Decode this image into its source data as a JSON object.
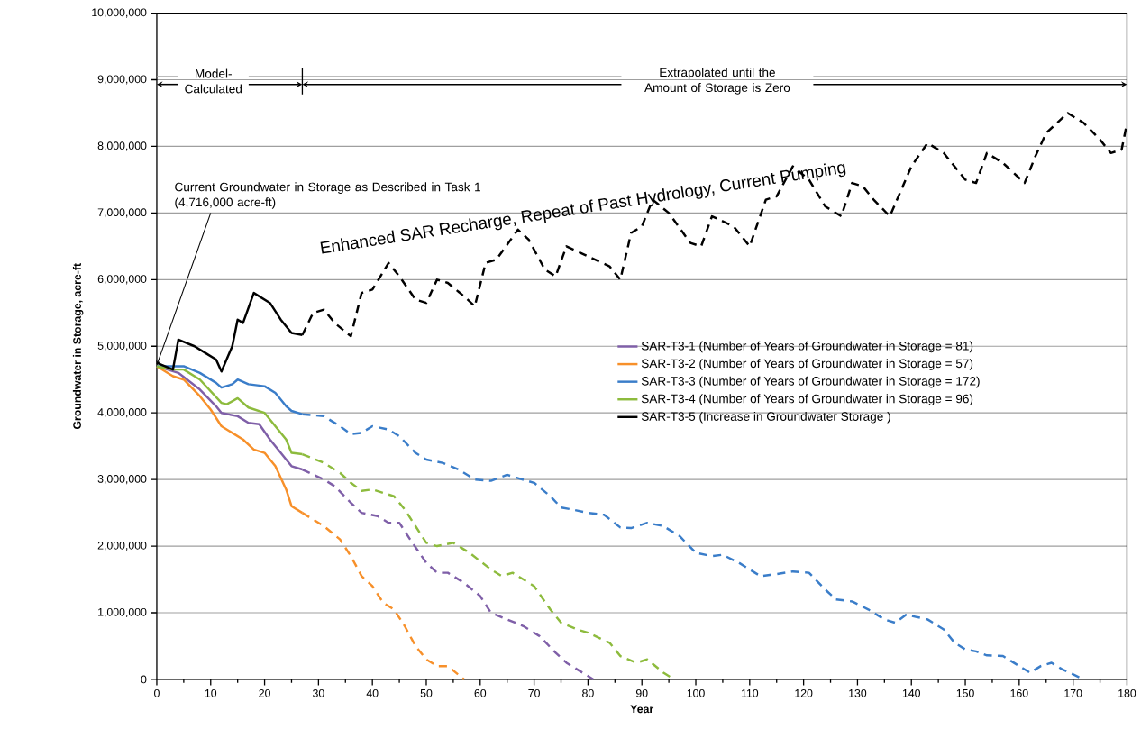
{
  "chart_data": {
    "type": "line",
    "xlabel": "Year",
    "ylabel": "Groundwater in Storage, acre-ft",
    "xlim": [
      0,
      180
    ],
    "xticks": [
      0,
      10,
      20,
      30,
      40,
      50,
      60,
      70,
      80,
      90,
      100,
      110,
      120,
      130,
      140,
      150,
      160,
      170,
      180
    ],
    "ylim": [
      0,
      10000000
    ],
    "yticks": [
      {
        "value": 0,
        "label": "0"
      },
      {
        "value": 1000000,
        "label": "1,000,000"
      },
      {
        "value": 2000000,
        "label": "2,000,000"
      },
      {
        "value": 3000000,
        "label": "3,000,000"
      },
      {
        "value": 4000000,
        "label": "4,000,000"
      },
      {
        "value": 5000000,
        "label": "5,000,000"
      },
      {
        "value": 6000000,
        "label": "6,000,000"
      },
      {
        "value": 7000000,
        "label": "7,000,000"
      },
      {
        "value": 8000000,
        "label": "8,000,000"
      },
      {
        "value": 9000000,
        "label": "9,000,000"
      },
      {
        "value": 10000000,
        "label": "10,000,000"
      }
    ],
    "grid": "y",
    "legend": "right",
    "annotations": [
      "Model-Calculated",
      "Extrapolated until the Amount of Storage is Zero",
      {
        "text": "Current Groundwater in Storage as Described in Task 1 (4,716,000 acre-ft)",
        "x": 0,
        "y": 4716000
      },
      "Enhanced SAR Recharge, Repeat of Past Hydrology, Current Pumping"
    ],
    "series": [
      {
        "name": "SAR-T3-1 (Number of Years of Groundwater in Storage = 81)",
        "color": "#7f5fa8",
        "line_style": "solid",
        "x": [
          0,
          4,
          8,
          11,
          12,
          15,
          17,
          19,
          21,
          23,
          25,
          27
        ],
        "values": [
          4700000,
          4600000,
          4350000,
          4100000,
          4000000,
          3950000,
          3850000,
          3830000,
          3600000,
          3400000,
          3200000,
          3150000
        ]
      },
      {
        "name": "SAR-T3-2 (Number of Years of Groundwater in Storage = 57)",
        "color": "#f7902a",
        "line_style": "solid",
        "x": [
          0,
          3,
          5,
          8,
          10,
          12,
          14,
          16,
          18,
          20,
          22,
          24,
          25,
          27
        ],
        "values": [
          4700000,
          4550000,
          4500000,
          4250000,
          4050000,
          3800000,
          3700000,
          3600000,
          3450000,
          3400000,
          3200000,
          2850000,
          2600000,
          2500000
        ]
      },
      {
        "name": "SAR-T3-3 (Number of Years of Groundwater in Storage = 172)",
        "color": "#3a7dc9",
        "line_style": "solid",
        "x": [
          0,
          5,
          8,
          11,
          12,
          14,
          15,
          17,
          20,
          22,
          24,
          25,
          27
        ],
        "values": [
          4700000,
          4700000,
          4600000,
          4450000,
          4380000,
          4430000,
          4500000,
          4430000,
          4400000,
          4300000,
          4100000,
          4030000,
          3980000
        ]
      },
      {
        "name": "SAR-T3-4 (Number of Years of Groundwater in Storage = 96)",
        "color": "#8dbb3d",
        "line_style": "solid",
        "x": [
          0,
          3,
          5,
          8,
          12,
          13,
          15,
          17,
          20,
          22,
          24,
          25,
          27
        ],
        "values": [
          4700000,
          4650000,
          4650000,
          4500000,
          4150000,
          4130000,
          4220000,
          4080000,
          4000000,
          3800000,
          3600000,
          3400000,
          3380000
        ]
      },
      {
        "name": "SAR-T3-5 (Increase in Groundwater Storage )",
        "color": "#000000",
        "line_style": "solid",
        "x": [
          0,
          3,
          4,
          7,
          9,
          11,
          12,
          14,
          15,
          16,
          18,
          21,
          23,
          25,
          27
        ],
        "values": [
          4750000,
          4650000,
          5100000,
          5000000,
          4900000,
          4800000,
          4620000,
          5000000,
          5400000,
          5350000,
          5800000,
          5650000,
          5400000,
          5200000,
          5170000
        ]
      },
      {
        "color": "#7f5fa8",
        "line_style": "dashed",
        "x": [
          27,
          31,
          33,
          36,
          38,
          41,
          43,
          45,
          47,
          50,
          52,
          54,
          57,
          60,
          62,
          65,
          68,
          71,
          74,
          76,
          79,
          81
        ],
        "values": [
          3150000,
          3000000,
          2900000,
          2650000,
          2500000,
          2450000,
          2350000,
          2350000,
          2100000,
          1750000,
          1600000,
          1600000,
          1450000,
          1250000,
          1000000,
          900000,
          800000,
          650000,
          400000,
          250000,
          100000,
          0
        ]
      },
      {
        "color": "#f7902a",
        "line_style": "dashed",
        "x": [
          27,
          31,
          34,
          36,
          38,
          40,
          42,
          44,
          46,
          48,
          50,
          52,
          54,
          57
        ],
        "values": [
          2500000,
          2300000,
          2100000,
          1850000,
          1550000,
          1400000,
          1150000,
          1050000,
          800000,
          500000,
          300000,
          200000,
          200000,
          0
        ]
      },
      {
        "color": "#3a7dc9",
        "line_style": "dashed",
        "x": [
          27,
          31,
          34,
          36,
          38,
          40,
          43,
          45,
          48,
          50,
          53,
          56,
          59,
          62,
          65,
          67,
          70,
          73,
          75,
          77,
          80,
          83,
          86,
          88,
          91,
          94,
          97,
          100,
          103,
          105,
          108,
          112,
          115,
          118,
          121,
          124,
          126,
          129,
          132,
          135,
          137,
          139,
          143,
          146,
          148,
          150,
          152,
          154,
          157,
          160,
          162,
          164,
          166,
          168,
          172
        ],
        "values": [
          3980000,
          3950000,
          3800000,
          3680000,
          3700000,
          3800000,
          3750000,
          3650000,
          3400000,
          3300000,
          3250000,
          3150000,
          3000000,
          2980000,
          3070000,
          3020000,
          2950000,
          2750000,
          2580000,
          2550000,
          2500000,
          2470000,
          2280000,
          2270000,
          2350000,
          2300000,
          2150000,
          1900000,
          1850000,
          1870000,
          1750000,
          1550000,
          1580000,
          1620000,
          1600000,
          1350000,
          1200000,
          1170000,
          1050000,
          900000,
          850000,
          970000,
          900000,
          750000,
          550000,
          450000,
          420000,
          360000,
          350000,
          200000,
          100000,
          200000,
          250000,
          150000,
          0
        ]
      },
      {
        "color": "#8dbb3d",
        "line_style": "dashed",
        "x": [
          27,
          31,
          34,
          36,
          38,
          40,
          44,
          46,
          48,
          50,
          52,
          55,
          58,
          62,
          64,
          66,
          70,
          73,
          75,
          78,
          80,
          84,
          86,
          89,
          91,
          94,
          96
        ],
        "values": [
          3380000,
          3250000,
          3100000,
          2950000,
          2830000,
          2850000,
          2750000,
          2550000,
          2300000,
          2050000,
          2000000,
          2050000,
          1900000,
          1650000,
          1550000,
          1600000,
          1400000,
          1050000,
          850000,
          750000,
          700000,
          550000,
          350000,
          250000,
          300000,
          100000,
          0
        ]
      },
      {
        "color": "#000000",
        "line_style": "dashed",
        "x": [
          27,
          29,
          31,
          33,
          36,
          38,
          40,
          43,
          45,
          48,
          50,
          52,
          54,
          57,
          59,
          61,
          63,
          67,
          69,
          72,
          74,
          76,
          80,
          84,
          86,
          88,
          90,
          92,
          95,
          99,
          101,
          103,
          107,
          110,
          113,
          115,
          118,
          121,
          124,
          127,
          129,
          131,
          133,
          136,
          140,
          143,
          146,
          150,
          152,
          154,
          157,
          161,
          163,
          165,
          169,
          172,
          175,
          177,
          179,
          180
        ],
        "values": [
          5170000,
          5500000,
          5550000,
          5350000,
          5150000,
          5800000,
          5850000,
          6250000,
          6050000,
          5700000,
          5650000,
          6000000,
          5950000,
          5750000,
          5600000,
          6250000,
          6300000,
          6750000,
          6600000,
          6150000,
          6050000,
          6500000,
          6350000,
          6200000,
          6000000,
          6700000,
          6800000,
          7200000,
          7000000,
          6550000,
          6500000,
          6950000,
          6800000,
          6500000,
          7200000,
          7250000,
          7700000,
          7500000,
          7100000,
          6950000,
          7450000,
          7400000,
          7200000,
          6950000,
          7700000,
          8050000,
          7900000,
          7500000,
          7450000,
          7900000,
          7750000,
          7450000,
          7850000,
          8200000,
          8500000,
          8350000,
          8100000,
          7900000,
          7950000,
          8350000
        ]
      }
    ]
  }
}
